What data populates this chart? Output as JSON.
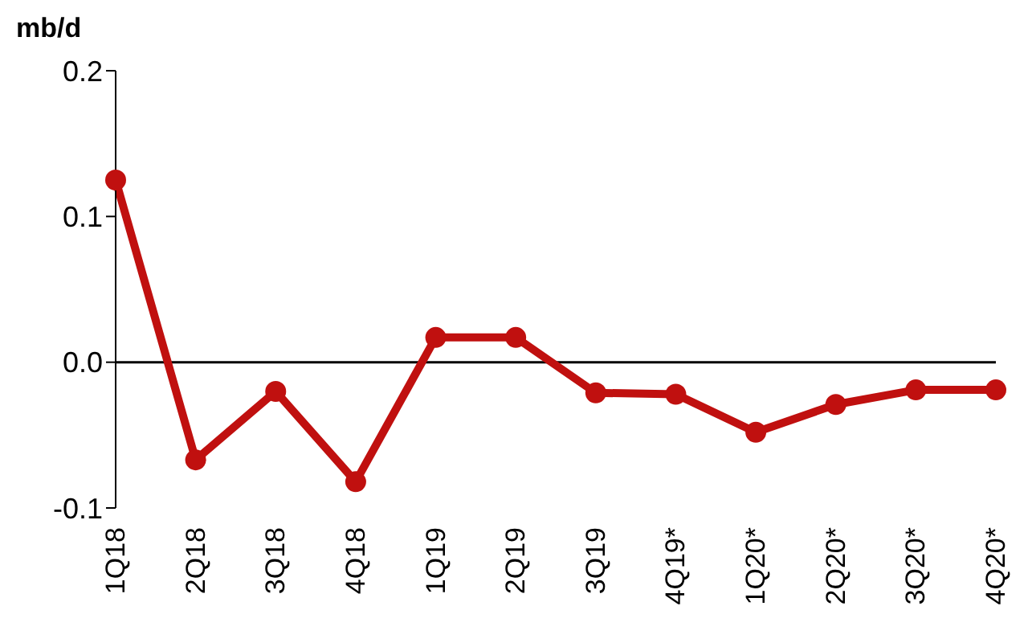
{
  "chart_data": {
    "type": "line",
    "ylabel": "mb/d",
    "categories": [
      "1Q18",
      "2Q18",
      "3Q18",
      "4Q18",
      "1Q19",
      "2Q19",
      "3Q19",
      "4Q19*",
      "1Q20*",
      "2Q20*",
      "3Q20*",
      "4Q20*"
    ],
    "series": [
      {
        "color": "#c0100f",
        "values": [
          0.125,
          -0.067,
          -0.02,
          -0.082,
          0.017,
          0.017,
          -0.021,
          -0.022,
          -0.048,
          -0.029,
          -0.019,
          -0.019
        ]
      }
    ],
    "ylim": [
      -0.1,
      0.2
    ],
    "yticks": [
      -0.1,
      {
        "value": 0,
        "label": "0.0"
      },
      0.1,
      0.2
    ],
    "ref_lines": [
      {
        "axis": "y",
        "value": 0,
        "color": "#000000"
      }
    ],
    "grid": false,
    "legend": false,
    "marker": "circle",
    "line_style": "solid"
  }
}
